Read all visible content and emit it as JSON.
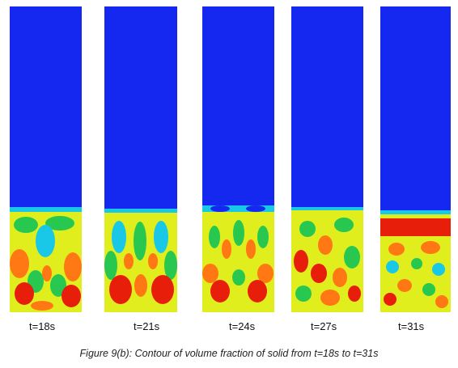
{
  "figure": {
    "caption": "Figure 9(b): Contour of volume fraction of solid from t=18s to t=31s",
    "colors": {
      "empty": "#1428f0",
      "interface": "#19c8e6",
      "low": "#28c850",
      "mid": "#dcf01e",
      "high": "#ff7814",
      "peak": "#e61e0a"
    },
    "panels": [
      {
        "label": "t=18s"
      },
      {
        "label": "t=21s"
      },
      {
        "label": "t=24s"
      },
      {
        "label": "t=27s"
      },
      {
        "label": "t=31s"
      }
    ]
  }
}
